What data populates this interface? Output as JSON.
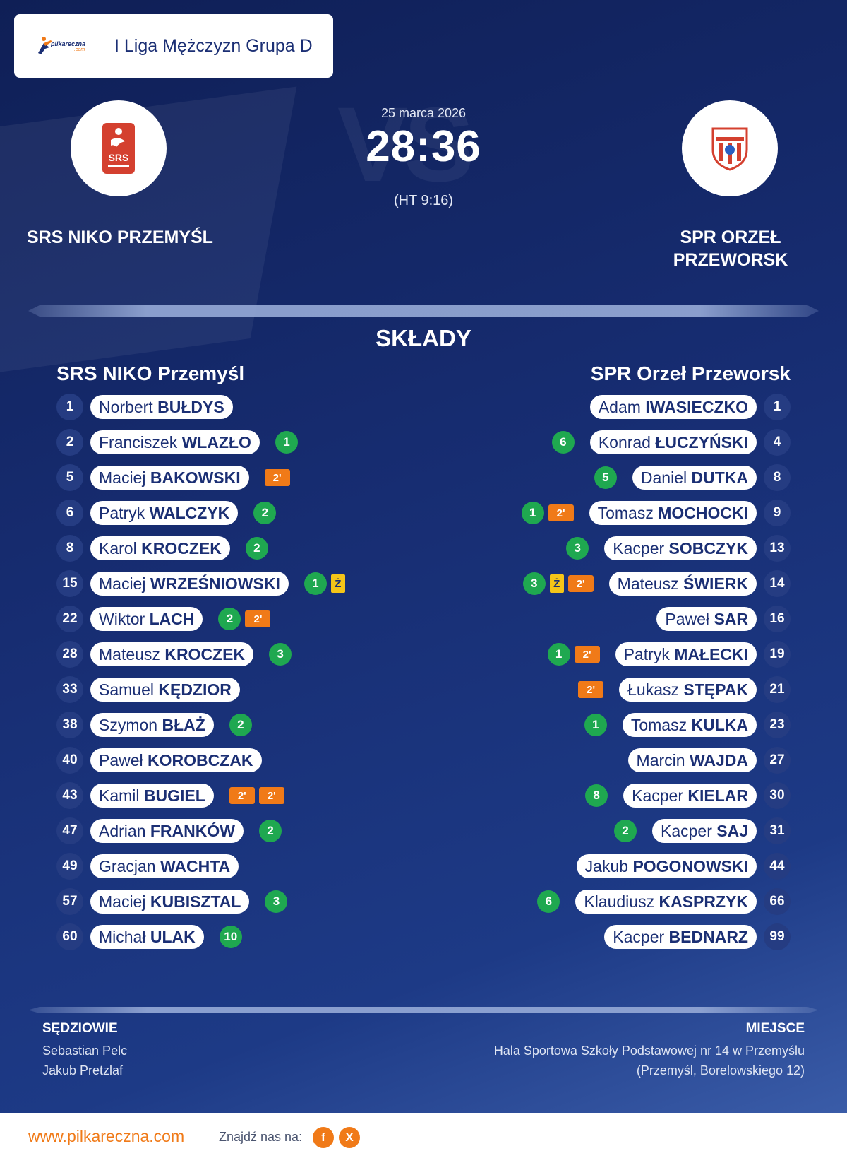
{
  "header": {
    "brand": "pilkareczna",
    "brand_sub": ".com",
    "league": "I Liga Mężczyzn Grupa D"
  },
  "match": {
    "date": "25 marca 2026",
    "score": "28:36",
    "halftime": "(HT 9:16)",
    "vs_watermark": "VS",
    "home_name": "SRS NIKO PRZEMYŚL",
    "away_name_line1": "SPR ORZEŁ",
    "away_name_line2": "PRZEWORSK"
  },
  "lineups": {
    "title": "SKŁADY",
    "home_title": "SRS NIKO Przemyśl",
    "away_title": "SPR Orzeł Przeworsk",
    "home": [
      {
        "num": "1",
        "first": "Norbert",
        "last": "BUŁDYS",
        "events": []
      },
      {
        "num": "2",
        "first": "Franciszek",
        "last": "WLAZŁO",
        "events": [
          {
            "type": "goal",
            "text": "1"
          }
        ]
      },
      {
        "num": "5",
        "first": "Maciej",
        "last": "BAKOWSKI",
        "events": [
          {
            "type": "susp",
            "text": "2'"
          }
        ]
      },
      {
        "num": "6",
        "first": "Patryk",
        "last": "WALCZYK",
        "events": [
          {
            "type": "goal",
            "text": "2"
          }
        ]
      },
      {
        "num": "8",
        "first": "Karol",
        "last": "KROCZEK",
        "events": [
          {
            "type": "goal",
            "text": "2"
          }
        ]
      },
      {
        "num": "15",
        "first": "Maciej",
        "last": "WRZEŚNIOWSKI",
        "events": [
          {
            "type": "goal",
            "text": "1"
          },
          {
            "type": "yellow",
            "text": "Ż"
          }
        ]
      },
      {
        "num": "22",
        "first": "Wiktor",
        "last": "LACH",
        "events": [
          {
            "type": "goal",
            "text": "2"
          },
          {
            "type": "susp",
            "text": "2'"
          }
        ]
      },
      {
        "num": "28",
        "first": "Mateusz",
        "last": "KROCZEK",
        "events": [
          {
            "type": "goal",
            "text": "3"
          }
        ]
      },
      {
        "num": "33",
        "first": "Samuel",
        "last": "KĘDZIOR",
        "events": []
      },
      {
        "num": "38",
        "first": "Szymon",
        "last": "BŁAŻ",
        "events": [
          {
            "type": "goal",
            "text": "2"
          }
        ]
      },
      {
        "num": "40",
        "first": "Paweł",
        "last": "KOROBCZAK",
        "events": []
      },
      {
        "num": "43",
        "first": "Kamil",
        "last": "BUGIEL",
        "events": [
          {
            "type": "susp",
            "text": "2'"
          },
          {
            "type": "susp",
            "text": "2'"
          }
        ]
      },
      {
        "num": "47",
        "first": "Adrian",
        "last": "FRANKÓW",
        "events": [
          {
            "type": "goal",
            "text": "2"
          }
        ]
      },
      {
        "num": "49",
        "first": "Gracjan",
        "last": "WACHTA",
        "events": []
      },
      {
        "num": "57",
        "first": "Maciej",
        "last": "KUBISZTAL",
        "events": [
          {
            "type": "goal",
            "text": "3"
          }
        ]
      },
      {
        "num": "60",
        "first": "Michał",
        "last": "ULAK",
        "events": [
          {
            "type": "goal",
            "text": "10"
          }
        ]
      }
    ],
    "away": [
      {
        "num": "1",
        "first": "Adam",
        "last": "IWASIECZKO",
        "events": []
      },
      {
        "num": "4",
        "first": "Konrad",
        "last": "ŁUCZYŃSKI",
        "events": [
          {
            "type": "goal",
            "text": "6"
          }
        ]
      },
      {
        "num": "8",
        "first": "Daniel",
        "last": "DUTKA",
        "events": [
          {
            "type": "goal",
            "text": "5"
          }
        ]
      },
      {
        "num": "9",
        "first": "Tomasz",
        "last": "MOCHOCKI",
        "events": [
          {
            "type": "susp",
            "text": "2'"
          },
          {
            "type": "goal",
            "text": "1"
          }
        ]
      },
      {
        "num": "13",
        "first": "Kacper",
        "last": "SOBCZYK",
        "events": [
          {
            "type": "goal",
            "text": "3"
          }
        ]
      },
      {
        "num": "14",
        "first": "Mateusz",
        "last": "ŚWIERK",
        "events": [
          {
            "type": "susp",
            "text": "2'"
          },
          {
            "type": "yellow",
            "text": "Ż"
          },
          {
            "type": "goal",
            "text": "3"
          }
        ]
      },
      {
        "num": "16",
        "first": "Paweł",
        "last": "SAR",
        "events": []
      },
      {
        "num": "19",
        "first": "Patryk",
        "last": "MAŁECKI",
        "events": [
          {
            "type": "susp",
            "text": "2'"
          },
          {
            "type": "goal",
            "text": "1"
          }
        ]
      },
      {
        "num": "21",
        "first": "Łukasz",
        "last": "STĘPAK",
        "events": [
          {
            "type": "susp",
            "text": "2'"
          }
        ]
      },
      {
        "num": "23",
        "first": "Tomasz",
        "last": "KULKA",
        "events": [
          {
            "type": "goal",
            "text": "1"
          }
        ]
      },
      {
        "num": "27",
        "first": "Marcin",
        "last": "WAJDA",
        "events": []
      },
      {
        "num": "30",
        "first": "Kacper",
        "last": "KIELAR",
        "events": [
          {
            "type": "goal",
            "text": "8"
          }
        ]
      },
      {
        "num": "31",
        "first": "Kacper",
        "last": "SAJ",
        "events": [
          {
            "type": "goal",
            "text": "2"
          }
        ]
      },
      {
        "num": "44",
        "first": "Jakub",
        "last": "POGONOWSKI",
        "events": []
      },
      {
        "num": "66",
        "first": "Klaudiusz",
        "last": "KASPRZYK",
        "events": [
          {
            "type": "goal",
            "text": "6"
          }
        ]
      },
      {
        "num": "99",
        "first": "Kacper",
        "last": "BEDNARZ",
        "events": []
      }
    ]
  },
  "info": {
    "referees_title": "SĘDZIOWIE",
    "referees": [
      "Sebastian Pelc",
      "Jakub Pretzlaf"
    ],
    "venue_title": "MIEJSCE",
    "venue_line1": "Hala Sportowa Szkoły Podstawowej nr 14 w Przemyślu",
    "venue_line2": "(Przemyśl, Borelowskiego 12)"
  },
  "footer": {
    "url": "www.pilkareczna.com",
    "find_us": "Znajdź nas na:",
    "facebook": "f",
    "x": "X"
  },
  "colors": {
    "navy": "#1b2f74",
    "goal": "#1fa850",
    "suspension": "#f07a18",
    "yellow_card": "#f5c518"
  }
}
